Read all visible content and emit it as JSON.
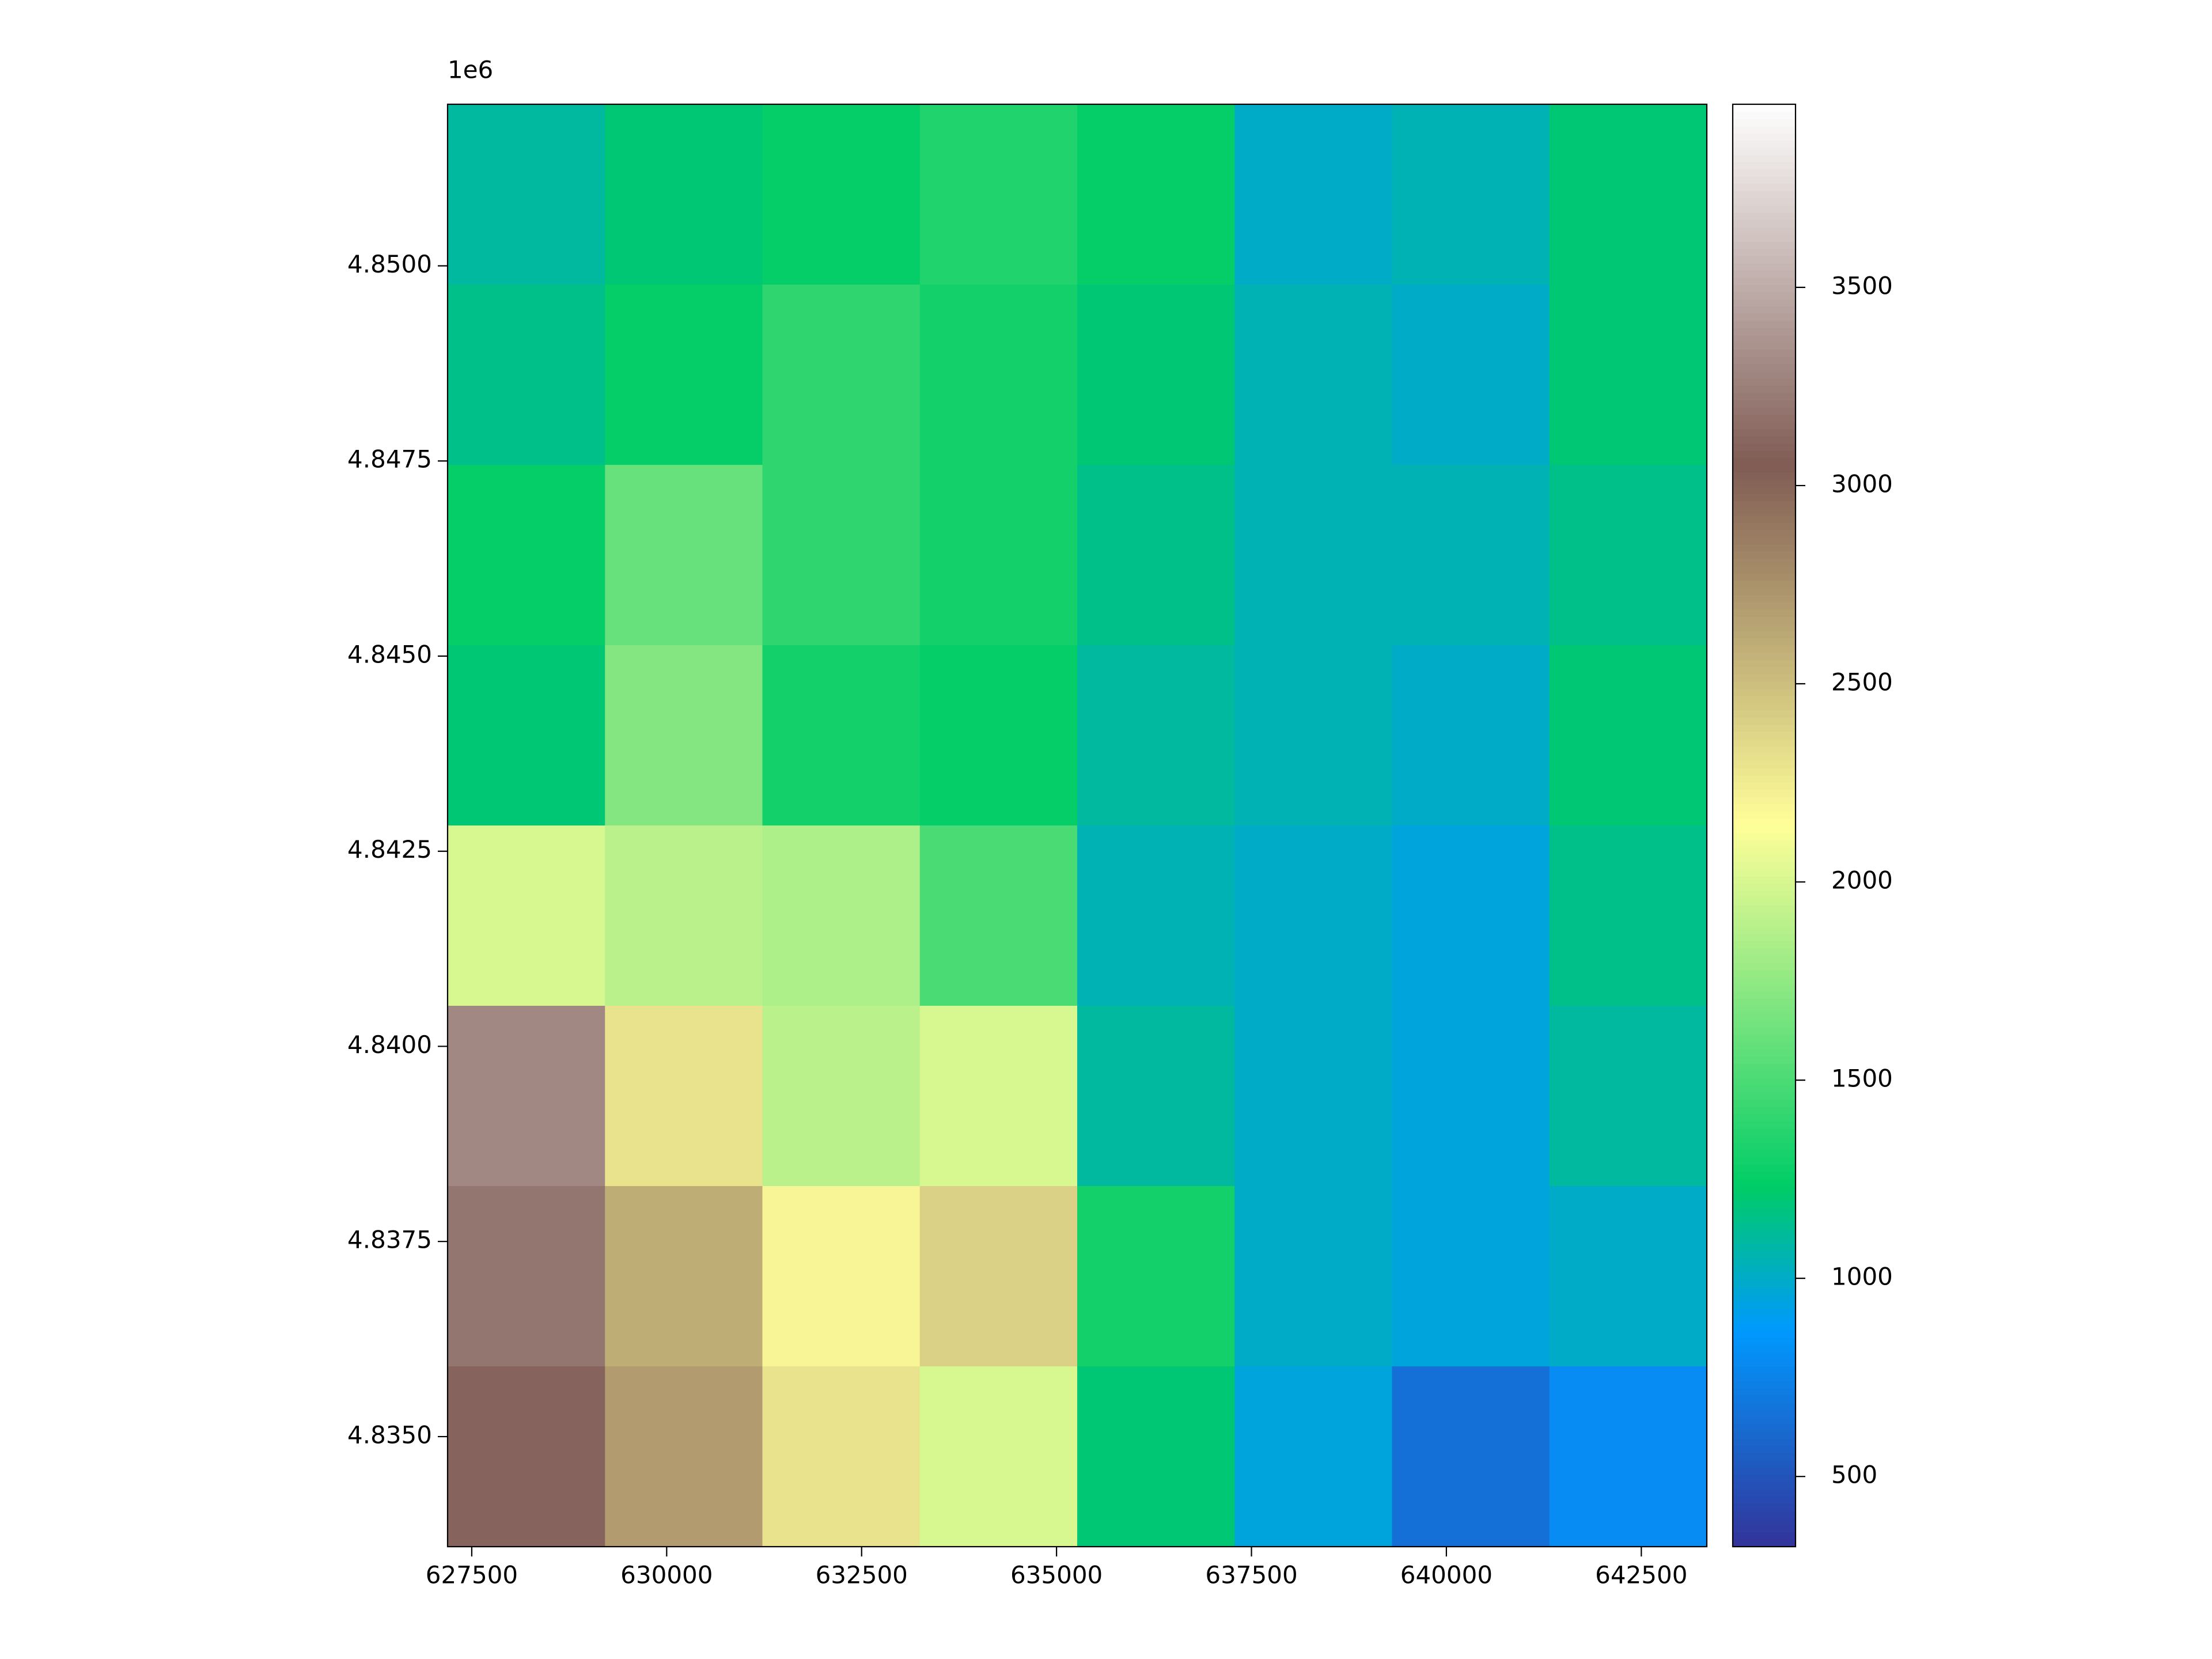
{
  "chart_data": {
    "type": "raster",
    "colormap": "terrain",
    "y_offset_label": "1e6",
    "xlim": [
      627190,
      643340
    ],
    "ylim": [
      4833590,
      4852070
    ],
    "xticks": [
      627500,
      630000,
      632500,
      635000,
      637500,
      640000,
      642500
    ],
    "yticks": [
      {
        "value": 4835000,
        "label": "4.8350"
      },
      {
        "value": 4837500,
        "label": "4.8375"
      },
      {
        "value": 4840000,
        "label": "4.8400"
      },
      {
        "value": 4842500,
        "label": "4.8425"
      },
      {
        "value": 4845000,
        "label": "4.8450"
      },
      {
        "value": 4847500,
        "label": "4.8475"
      },
      {
        "value": 4850000,
        "label": "4.8500"
      }
    ],
    "clim": [
      323,
      3962
    ],
    "cticks": [
      500,
      1000,
      1500,
      2000,
      2500,
      3000,
      3500
    ],
    "z": [
      [
        1100,
        1200,
        1250,
        1350,
        1250,
        1000,
        1050,
        1200
      ],
      [
        1150,
        1250,
        1400,
        1300,
        1200,
        1050,
        1000,
        1200
      ],
      [
        1250,
        1600,
        1400,
        1300,
        1150,
        1050,
        1050,
        1150
      ],
      [
        1200,
        1700,
        1300,
        1250,
        1100,
        1050,
        1000,
        1200
      ],
      [
        2000,
        1900,
        1850,
        1500,
        1050,
        1000,
        950,
        1150
      ],
      [
        3300,
        2300,
        1900,
        2000,
        1100,
        1000,
        950,
        1100
      ],
      [
        3200,
        2600,
        2200,
        2400,
        1300,
        1000,
        950,
        1000
      ],
      [
        3100,
        2700,
        2300,
        2000,
        1200,
        950,
        650,
        800
      ]
    ]
  }
}
